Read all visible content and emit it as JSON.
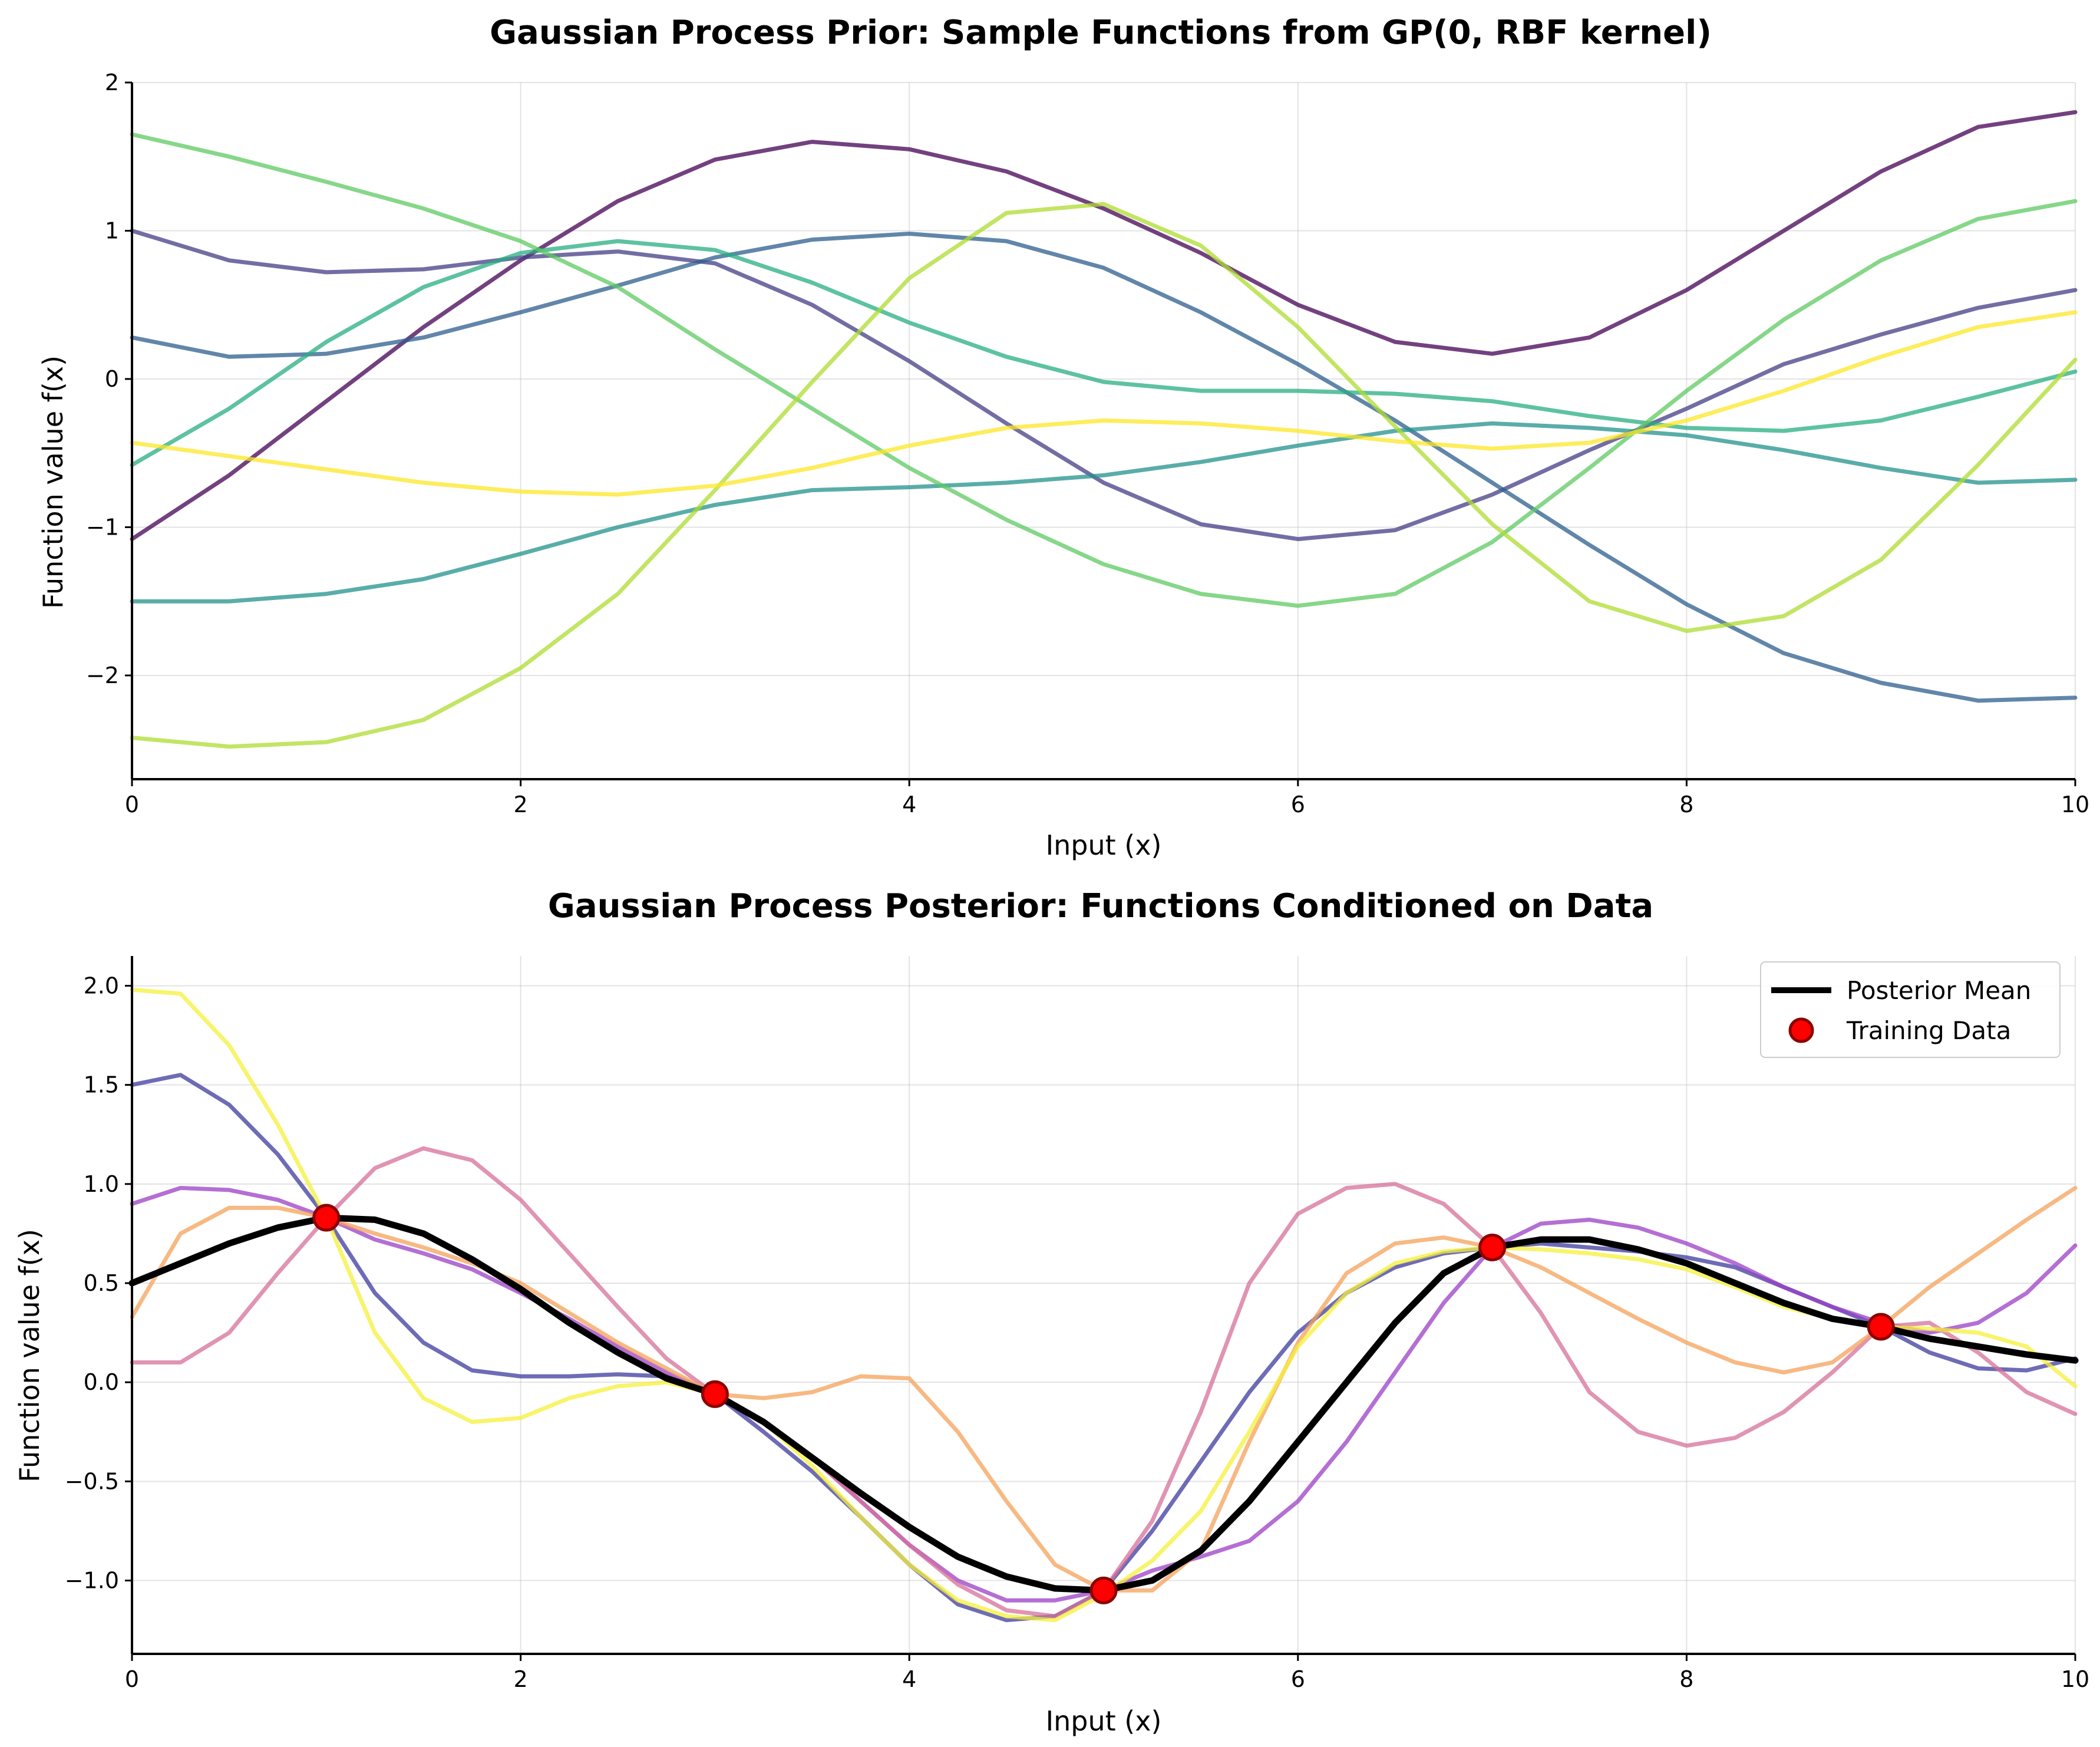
{
  "chart_data": [
    {
      "type": "line",
      "title": "Gaussian Process Prior: Sample Functions from GP(0, RBF kernel)",
      "xlabel": "Input (x)",
      "ylabel": "Function value f(x)",
      "xlim": [
        0,
        10
      ],
      "ylim": [
        -2.7,
        2.0
      ],
      "xticks": [
        0,
        2,
        4,
        6,
        8,
        10
      ],
      "xtick_labels": [
        "0",
        "2",
        "4",
        "6",
        "8",
        "10"
      ],
      "yticks": [
        -2,
        -1,
        0,
        1,
        2
      ],
      "ytick_labels": [
        "−2",
        "−1",
        "0",
        "1",
        "2"
      ],
      "grid": true,
      "x": [
        0,
        0.5,
        1,
        1.5,
        2,
        2.5,
        3,
        3.5,
        4,
        4.5,
        5,
        5.5,
        6,
        6.5,
        7,
        7.5,
        8,
        8.5,
        9,
        9.5,
        10
      ],
      "series": [
        {
          "color": "#440154",
          "values": [
            -1.08,
            -0.65,
            -0.15,
            0.35,
            0.8,
            1.2,
            1.48,
            1.6,
            1.55,
            1.4,
            1.15,
            0.85,
            0.5,
            0.25,
            0.17,
            0.28,
            0.6,
            1.0,
            1.4,
            1.7,
            1.8
          ]
        },
        {
          "color": "#433e85",
          "values": [
            1.0,
            0.8,
            0.72,
            0.74,
            0.82,
            0.86,
            0.78,
            0.5,
            0.12,
            -0.3,
            -0.7,
            -0.98,
            -1.08,
            -1.02,
            -0.78,
            -0.48,
            -0.2,
            0.1,
            0.3,
            0.48,
            0.6
          ]
        },
        {
          "color": "#2c5e8e",
          "values": [
            0.28,
            0.15,
            0.17,
            0.28,
            0.45,
            0.63,
            0.82,
            0.94,
            0.98,
            0.93,
            0.75,
            0.45,
            0.1,
            -0.28,
            -0.7,
            -1.12,
            -1.52,
            -1.85,
            -2.05,
            -2.17,
            -2.15
          ]
        },
        {
          "color": "#21918c",
          "values": [
            -1.5,
            -1.5,
            -1.45,
            -1.35,
            -1.18,
            -1.0,
            -0.85,
            -0.75,
            -0.73,
            -0.7,
            -0.65,
            -0.56,
            -0.45,
            -0.35,
            -0.3,
            -0.33,
            -0.38,
            -0.48,
            -0.6,
            -0.7,
            -0.68
          ]
        },
        {
          "color": "#27ad81",
          "values": [
            -0.58,
            -0.2,
            0.25,
            0.62,
            0.85,
            0.93,
            0.87,
            0.65,
            0.38,
            0.15,
            -0.02,
            -0.08,
            -0.08,
            -0.1,
            -0.15,
            -0.25,
            -0.33,
            -0.35,
            -0.28,
            -0.12,
            0.05
          ]
        },
        {
          "color": "#5ec962",
          "values": [
            1.65,
            1.5,
            1.33,
            1.15,
            0.93,
            0.62,
            0.2,
            -0.2,
            -0.6,
            -0.95,
            -1.25,
            -1.45,
            -1.53,
            -1.45,
            -1.1,
            -0.6,
            -0.08,
            0.4,
            0.8,
            1.08,
            1.2
          ]
        },
        {
          "color": "#addc30",
          "values": [
            -2.42,
            -2.48,
            -2.45,
            -2.3,
            -1.95,
            -1.45,
            -0.75,
            -0.02,
            0.68,
            1.12,
            1.18,
            0.9,
            0.35,
            -0.32,
            -0.98,
            -1.5,
            -1.7,
            -1.6,
            -1.22,
            -0.58,
            0.13
          ]
        },
        {
          "color": "#fde725",
          "values": [
            -0.43,
            -0.52,
            -0.61,
            -0.7,
            -0.76,
            -0.78,
            -0.72,
            -0.6,
            -0.45,
            -0.33,
            -0.28,
            -0.3,
            -0.35,
            -0.42,
            -0.47,
            -0.43,
            -0.28,
            -0.08,
            0.15,
            0.35,
            0.45
          ]
        }
      ]
    },
    {
      "type": "line",
      "title": "Gaussian Process Posterior: Functions Conditioned on Data",
      "xlabel": "Input (x)",
      "ylabel": "Function value f(x)",
      "xlim": [
        0,
        10
      ],
      "ylim": [
        -1.37,
        2.15
      ],
      "xticks": [
        0,
        2,
        4,
        6,
        8,
        10
      ],
      "xtick_labels": [
        "0",
        "2",
        "4",
        "6",
        "8",
        "10"
      ],
      "yticks": [
        -1.0,
        -0.5,
        0.0,
        0.5,
        1.0,
        1.5,
        2.0
      ],
      "ytick_labels": [
        "−1.0",
        "−0.5",
        "0.0",
        "0.5",
        "1.0",
        "1.5",
        "2.0"
      ],
      "grid": true,
      "legend_position": "top-right",
      "legend": [
        "Posterior Mean",
        "Training Data"
      ],
      "x": [
        0,
        0.25,
        0.5,
        0.75,
        1,
        1.25,
        1.5,
        1.75,
        2,
        2.25,
        2.5,
        2.75,
        3,
        3.25,
        3.5,
        3.75,
        4,
        4.25,
        4.5,
        4.75,
        5,
        5.25,
        5.5,
        5.75,
        6,
        6.25,
        6.5,
        6.75,
        7,
        7.25,
        7.5,
        7.75,
        8,
        8.25,
        8.5,
        8.75,
        9,
        9.25,
        9.5,
        9.75,
        10
      ],
      "samples": [
        {
          "color": "#3d3b9e",
          "values": [
            1.5,
            1.55,
            1.4,
            1.15,
            0.83,
            0.45,
            0.2,
            0.06,
            0.03,
            0.03,
            0.04,
            0.03,
            -0.06,
            -0.25,
            -0.45,
            -0.68,
            -0.92,
            -1.12,
            -1.2,
            -1.18,
            -1.05,
            -0.75,
            -0.4,
            -0.05,
            0.25,
            0.45,
            0.58,
            0.65,
            0.68,
            0.7,
            0.68,
            0.66,
            0.63,
            0.58,
            0.48,
            0.38,
            0.28,
            0.15,
            0.07,
            0.06,
            0.12
          ]
        },
        {
          "color": "#9b3fc6",
          "values": [
            0.9,
            0.98,
            0.97,
            0.92,
            0.83,
            0.72,
            0.65,
            0.57,
            0.45,
            0.32,
            0.18,
            0.05,
            -0.06,
            -0.2,
            -0.38,
            -0.6,
            -0.82,
            -1.0,
            -1.1,
            -1.1,
            -1.05,
            -0.95,
            -0.88,
            -0.8,
            -0.6,
            -0.3,
            0.05,
            0.4,
            0.68,
            0.8,
            0.82,
            0.78,
            0.7,
            0.6,
            0.48,
            0.38,
            0.3,
            0.25,
            0.3,
            0.45,
            0.69
          ]
        },
        {
          "color": "#d6709a",
          "values": [
            0.1,
            0.1,
            0.25,
            0.55,
            0.83,
            1.08,
            1.18,
            1.12,
            0.92,
            0.65,
            0.38,
            0.12,
            -0.06,
            -0.2,
            -0.38,
            -0.6,
            -0.82,
            -1.02,
            -1.15,
            -1.18,
            -1.05,
            -0.7,
            -0.15,
            0.5,
            0.85,
            0.98,
            1.0,
            0.9,
            0.68,
            0.35,
            -0.05,
            -0.25,
            -0.32,
            -0.28,
            -0.15,
            0.05,
            0.28,
            0.3,
            0.15,
            -0.05,
            -0.16
          ]
        },
        {
          "color": "#f4a25a",
          "values": [
            0.33,
            0.75,
            0.88,
            0.88,
            0.83,
            0.75,
            0.68,
            0.6,
            0.5,
            0.35,
            0.2,
            0.07,
            -0.06,
            -0.08,
            -0.05,
            0.03,
            0.02,
            -0.25,
            -0.6,
            -0.92,
            -1.05,
            -1.05,
            -0.85,
            -0.3,
            0.2,
            0.55,
            0.7,
            0.73,
            0.68,
            0.58,
            0.45,
            0.32,
            0.2,
            0.1,
            0.05,
            0.1,
            0.28,
            0.48,
            0.65,
            0.82,
            0.98
          ]
        },
        {
          "color": "#f5f03a",
          "values": [
            1.98,
            1.96,
            1.7,
            1.3,
            0.83,
            0.25,
            -0.08,
            -0.2,
            -0.18,
            -0.08,
            -0.02,
            0.0,
            -0.06,
            -0.2,
            -0.42,
            -0.68,
            -0.92,
            -1.1,
            -1.18,
            -1.2,
            -1.07,
            -0.9,
            -0.65,
            -0.25,
            0.18,
            0.45,
            0.6,
            0.66,
            0.68,
            0.67,
            0.65,
            0.62,
            0.57,
            0.48,
            0.38,
            0.32,
            0.28,
            0.27,
            0.25,
            0.18,
            -0.02
          ]
        }
      ],
      "posterior_mean": {
        "name": "Posterior Mean",
        "color": "#000000",
        "values": [
          0.5,
          0.6,
          0.7,
          0.78,
          0.83,
          0.82,
          0.75,
          0.62,
          0.47,
          0.3,
          0.15,
          0.02,
          -0.06,
          -0.2,
          -0.38,
          -0.56,
          -0.73,
          -0.88,
          -0.98,
          -1.04,
          -1.05,
          -1.0,
          -0.85,
          -0.6,
          -0.3,
          0.0,
          0.3,
          0.55,
          0.68,
          0.72,
          0.72,
          0.67,
          0.6,
          0.5,
          0.4,
          0.32,
          0.28,
          0.22,
          0.18,
          0.14,
          0.11
        ]
      },
      "training_data": {
        "name": "Training Data",
        "marker_color": "#ff0000",
        "edge_color": "#8b0000",
        "x": [
          1,
          3,
          5,
          7,
          9
        ],
        "y": [
          0.83,
          -0.06,
          -1.05,
          0.68,
          0.28
        ]
      }
    }
  ]
}
